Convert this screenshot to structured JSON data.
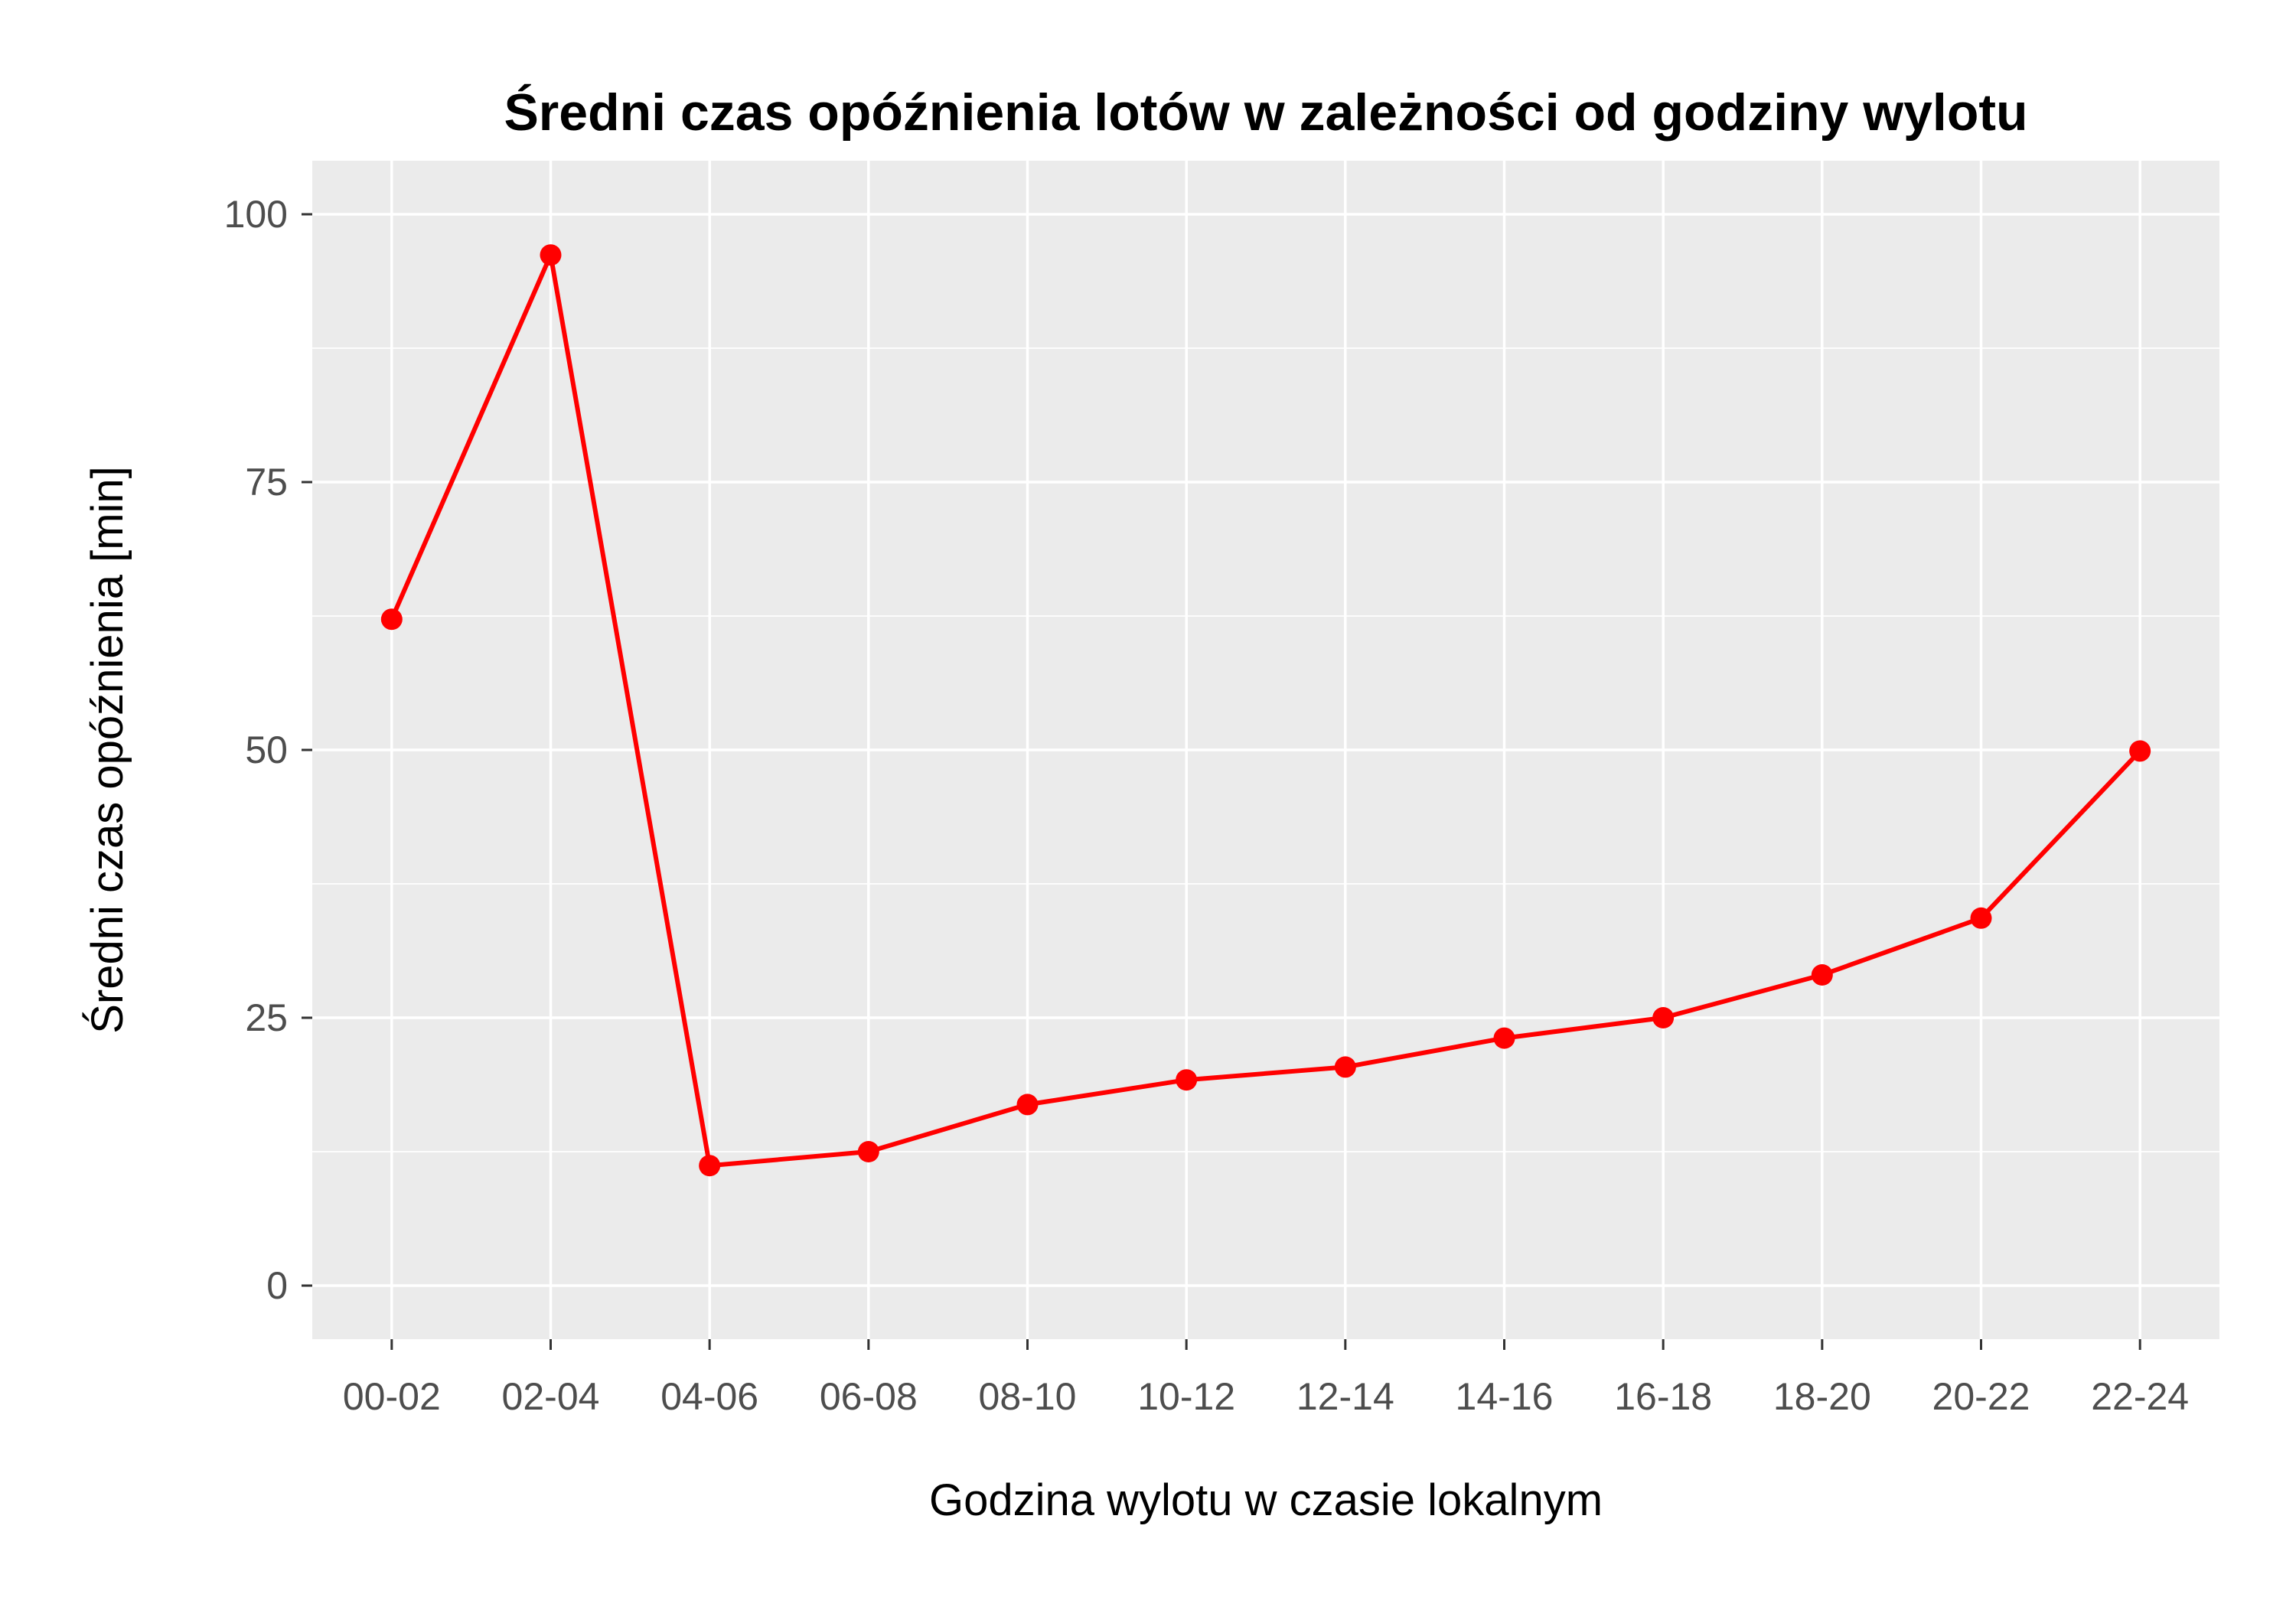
{
  "chart_data": {
    "type": "line",
    "title": "Średni czas opóźnienia lotów w zależności od godziny wylotu",
    "xlabel": "Godzina wylotu w czasie lokalnym",
    "ylabel": "Średni czas opóźnienia [min]",
    "categories": [
      "00-02",
      "02-04",
      "04-06",
      "06-08",
      "08-10",
      "10-12",
      "12-14",
      "14-16",
      "16-18",
      "18-20",
      "20-22",
      "22-24"
    ],
    "series": [
      {
        "values": [
          62.2,
          96.2,
          11.2,
          12.5,
          16.9,
          19.2,
          20.4,
          23.1,
          25.0,
          29.0,
          34.3,
          49.9
        ],
        "color": "#ff0000"
      }
    ],
    "yticks": [
      0,
      25,
      50,
      75,
      100
    ],
    "ylim": [
      -5,
      105
    ],
    "grid": true,
    "panel_background": "#ebebeb",
    "grid_color": "#ffffff"
  }
}
